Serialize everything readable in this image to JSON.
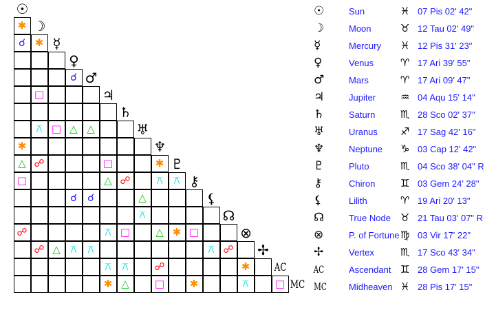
{
  "aspect_types": {
    "conjunction": {
      "glyph": "☌",
      "color": "#1a1aff"
    },
    "sextile": {
      "glyph": "✱",
      "color": "#ff8c00"
    },
    "square": {
      "glyph": "□",
      "color": "#ff00ff"
    },
    "trine": {
      "glyph": "△",
      "color": "#00cc00"
    },
    "opposition": {
      "glyph": "☍",
      "color": "#ff0000"
    },
    "quincunx": {
      "glyph": "⚻",
      "color": "#00e0e0"
    }
  },
  "bodies": [
    {
      "name": "Sun",
      "glyph": "☉",
      "sign": "♓",
      "position": "07 Pis 02' 42\""
    },
    {
      "name": "Moon",
      "glyph": "☽",
      "sign": "♉",
      "position": "12 Tau 02' 49\""
    },
    {
      "name": "Mercury",
      "glyph": "☿",
      "sign": "♓",
      "position": "12 Pis 31' 23\""
    },
    {
      "name": "Venus",
      "glyph": "♀",
      "sign": "♈",
      "position": "17 Ari 39' 55\""
    },
    {
      "name": "Mars",
      "glyph": "♂",
      "sign": "♈",
      "position": "17 Ari 09' 47\""
    },
    {
      "name": "Jupiter",
      "glyph": "♃",
      "sign": "♒",
      "position": "04 Aqu 15' 14\""
    },
    {
      "name": "Saturn",
      "glyph": "♄",
      "sign": "♏",
      "position": "28 Sco 02' 37\""
    },
    {
      "name": "Uranus",
      "glyph": "♅",
      "sign": "♐",
      "position": "17 Sag 42' 16\""
    },
    {
      "name": "Neptune",
      "glyph": "♆",
      "sign": "♑",
      "position": "03 Cap 12' 42\""
    },
    {
      "name": "Pluto",
      "glyph": "♇",
      "sign": "♏",
      "position": "04 Sco 38' 04\" R"
    },
    {
      "name": "Chiron",
      "glyph": "⚷",
      "sign": "♊",
      "position": "03 Gem 24' 28\""
    },
    {
      "name": "Lilith",
      "glyph": "⚸",
      "sign": "♈",
      "position": "19 Ari 20' 13\""
    },
    {
      "name": "True Node",
      "glyph": "☊",
      "sign": "♉",
      "position": "21 Tau 03' 07\" R"
    },
    {
      "name": "P. of Fortune",
      "glyph": "⊗",
      "sign": "♍",
      "position": "03 Vir 17' 22\""
    },
    {
      "name": "Vertex",
      "glyph": "✢",
      "sign": "♏",
      "position": "17 Sco 43' 34\""
    },
    {
      "name": "Ascendant",
      "glyph": "AC",
      "sign": "♊",
      "position": "28 Gem 17' 15\""
    },
    {
      "name": "Midheaven",
      "glyph": "MC",
      "sign": "♓",
      "position": "28 Pis 17' 15\""
    }
  ],
  "aspects": [
    [],
    [
      "sextile"
    ],
    [
      "conjunction",
      "sextile"
    ],
    [
      "",
      "",
      "",
      ""
    ],
    [
      "",
      "",
      "",
      "conjunction"
    ],
    [
      "",
      "square"
    ],
    [],
    [
      "",
      "quincunx",
      "square",
      "trine",
      "trine"
    ],
    [
      "sextile"
    ],
    [
      "trine",
      "opposition",
      "",
      "",
      "",
      "square",
      "",
      "",
      "sextile"
    ],
    [
      "square",
      "",
      "",
      "",
      "",
      "trine",
      "opposition",
      "",
      "quincunx",
      "quincunx"
    ],
    [
      "",
      "",
      "",
      "conjunction",
      "conjunction",
      "",
      "",
      "trine"
    ],
    [
      "",
      "",
      "",
      "",
      "",
      "",
      "",
      "quincunx"
    ],
    [
      "opposition",
      "",
      "",
      "",
      "",
      "quincunx",
      "square",
      "",
      "trine",
      "sextile",
      "square"
    ],
    [
      "",
      "opposition",
      "trine",
      "quincunx",
      "quincunx",
      "",
      "",
      "",
      "",
      "",
      "",
      "quincunx",
      "opposition"
    ],
    [
      "",
      "",
      "",
      "",
      "",
      "quincunx",
      "quincunx",
      "",
      "opposition",
      "",
      "",
      "",
      "",
      "sextile"
    ],
    [
      "",
      "",
      "",
      "",
      "",
      "sextile",
      "trine",
      "",
      "square",
      "",
      "sextile",
      "",
      "",
      "quincunx",
      "",
      "square"
    ]
  ]
}
